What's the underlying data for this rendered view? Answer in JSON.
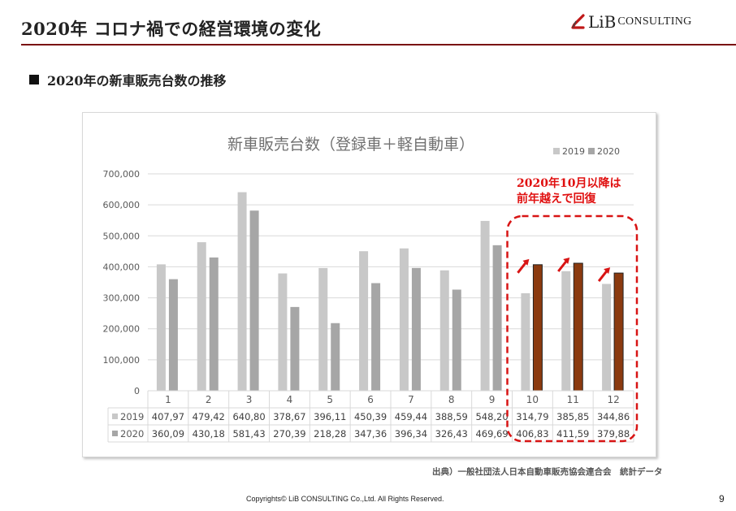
{
  "slide": {
    "title": "2020年 コロナ禍での経営環境の変化",
    "section_heading": "2020年の新車販売台数の推移",
    "source_note": "出典）一般社団法人日本自動車販売協会連合会　統計データ",
    "copyright": "Copyrights© LiB CONSULTING Co.,Ltd.  All Rights Reserved.",
    "page_number": "9"
  },
  "logo": {
    "mark_text": "L",
    "name": "iB",
    "suffix": "CONSULTING"
  },
  "annotation": {
    "line1": "2020年10月以降は",
    "line2": "前年越えで回復"
  },
  "colors": {
    "accent_rule": "#7a1010",
    "series_2019": "#c8c8c8",
    "series_2020": "#a6a6a6",
    "highlight_2020": "#8b3a0f",
    "annotation_red": "#e01010"
  },
  "chart_data": {
    "type": "bar",
    "title": "新車販売台数（登録車＋軽自動車）",
    "categories": [
      "1",
      "2",
      "3",
      "4",
      "5",
      "6",
      "7",
      "8",
      "9",
      "10",
      "11",
      "12"
    ],
    "ylim": [
      0,
      700000
    ],
    "yticks": [
      "0",
      "100,000",
      "200,000",
      "300,000",
      "400,000",
      "500,000",
      "600,000",
      "700,000"
    ],
    "grid": true,
    "legend_position": "top-right",
    "series": [
      {
        "name": "2019",
        "values": [
          407970,
          479420,
          640800,
          378670,
          396110,
          450390,
          459440,
          388590,
          548200,
          314790,
          385850,
          344860
        ],
        "table_labels": [
          "407,97",
          "479,42",
          "640,80",
          "378,67",
          "396,11",
          "450,39",
          "459,44",
          "388,59",
          "548,20",
          "314,79",
          "385,85",
          "344,86"
        ]
      },
      {
        "name": "2020",
        "values": [
          360090,
          430180,
          581430,
          270390,
          218280,
          347360,
          396340,
          326430,
          469690,
          406830,
          411590,
          379880
        ],
        "table_labels": [
          "360,09",
          "430,18",
          "581,43",
          "270,39",
          "218,28",
          "347,36",
          "396,34",
          "326,43",
          "469,69",
          "406,83",
          "411,59",
          "379,88"
        ]
      }
    ],
    "highlighted_categories": [
      "10",
      "11",
      "12"
    ]
  }
}
